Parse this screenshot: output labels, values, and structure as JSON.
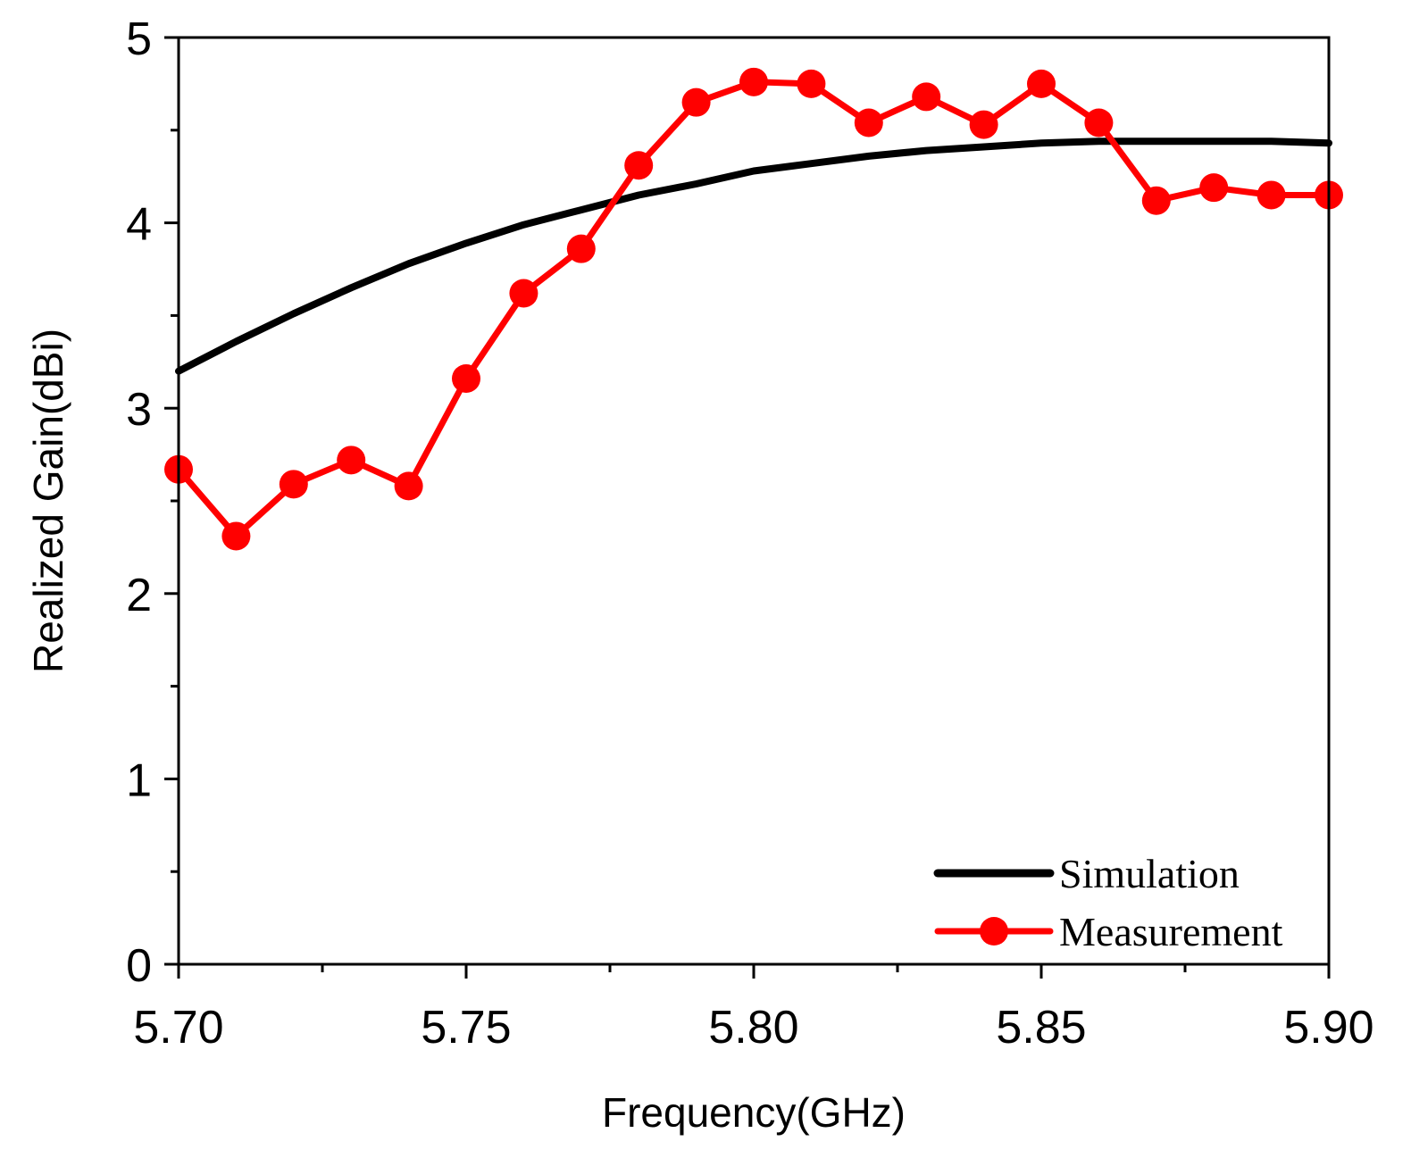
{
  "chart_data": {
    "type": "line",
    "title": "",
    "xlabel": "Frequency(GHz)",
    "ylabel": "Realized Gain(dBi)",
    "xlim": [
      5.7,
      5.9
    ],
    "ylim": [
      0,
      5
    ],
    "xticks": [
      5.7,
      5.75,
      5.8,
      5.85,
      5.9
    ],
    "xtick_labels": [
      "5.70",
      "5.75",
      "5.80",
      "5.85",
      "5.90"
    ],
    "yticks": [
      0,
      1,
      2,
      3,
      4,
      5
    ],
    "ytick_labels": [
      "0",
      "1",
      "2",
      "3",
      "4",
      "5"
    ],
    "grid": false,
    "legend_position": "bottom-right",
    "series": [
      {
        "name": "Simulation",
        "color": "#000000",
        "marker": "none",
        "x": [
          5.7,
          5.71,
          5.72,
          5.73,
          5.74,
          5.75,
          5.76,
          5.77,
          5.78,
          5.79,
          5.8,
          5.81,
          5.82,
          5.83,
          5.84,
          5.85,
          5.86,
          5.87,
          5.88,
          5.89,
          5.9
        ],
        "values": [
          3.2,
          3.36,
          3.51,
          3.65,
          3.78,
          3.89,
          3.99,
          4.07,
          4.15,
          4.21,
          4.28,
          4.32,
          4.36,
          4.39,
          4.41,
          4.43,
          4.44,
          4.44,
          4.44,
          4.44,
          4.43
        ]
      },
      {
        "name": "Measurement",
        "color": "#ff0000",
        "marker": "circle",
        "x": [
          5.7,
          5.71,
          5.72,
          5.73,
          5.74,
          5.75,
          5.76,
          5.77,
          5.78,
          5.79,
          5.8,
          5.81,
          5.82,
          5.83,
          5.84,
          5.85,
          5.86,
          5.87,
          5.88,
          5.89,
          5.9
        ],
        "values": [
          2.67,
          2.31,
          2.59,
          2.72,
          2.58,
          3.16,
          3.62,
          3.86,
          4.31,
          4.65,
          4.76,
          4.75,
          4.54,
          4.68,
          4.53,
          4.75,
          4.54,
          4.12,
          4.19,
          4.15,
          4.15
        ]
      }
    ]
  }
}
